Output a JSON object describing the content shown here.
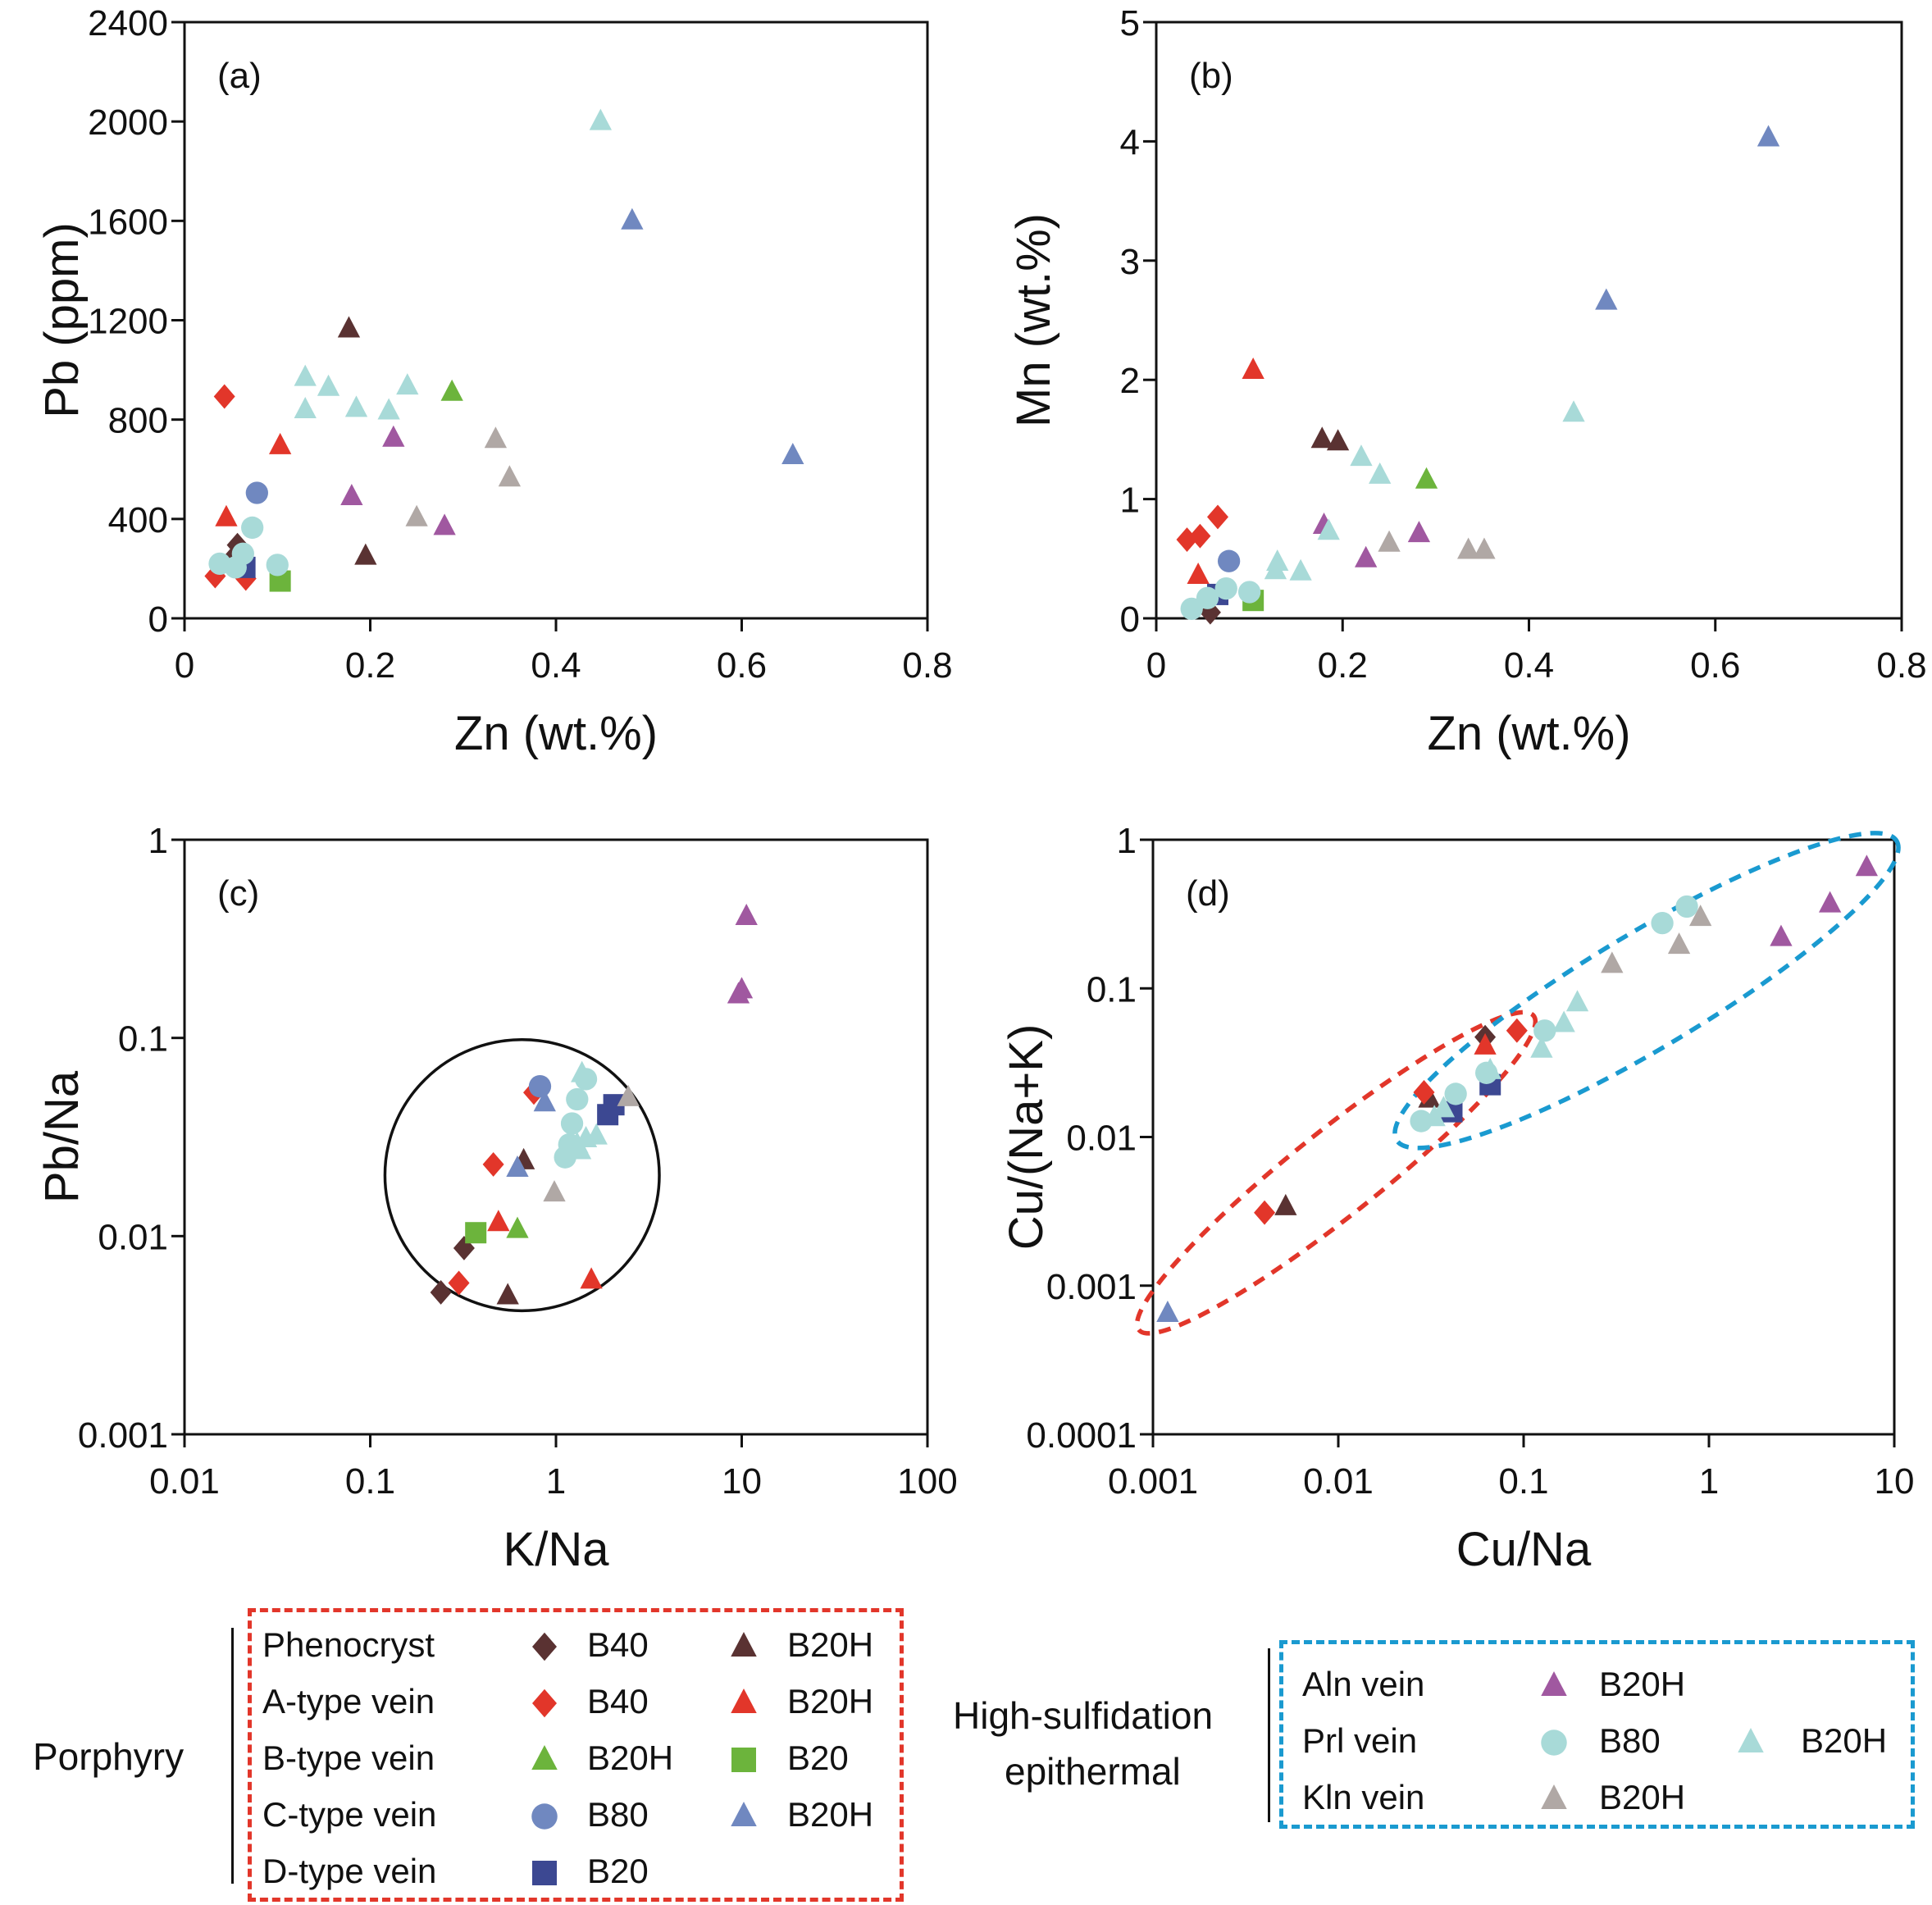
{
  "styles": {
    "ph_d": {
      "shape": "diamond",
      "color": "#5a3232"
    },
    "ph_t": {
      "shape": "triangle",
      "color": "#5a3232"
    },
    "a_d": {
      "shape": "diamond",
      "color": "#e2362a"
    },
    "a_t": {
      "shape": "triangle",
      "color": "#e2362a"
    },
    "b_t": {
      "shape": "triangle",
      "color": "#6cb43c"
    },
    "b_s": {
      "shape": "square",
      "color": "#6cb43c"
    },
    "c_c": {
      "shape": "circle",
      "color": "#7088c0"
    },
    "c_t": {
      "shape": "triangle",
      "color": "#7088c0"
    },
    "d_s": {
      "shape": "square",
      "color": "#3c4892"
    },
    "aln_t": {
      "shape": "triangle",
      "color": "#a058a0"
    },
    "prl_c": {
      "shape": "circle",
      "color": "#a8dad8"
    },
    "prl_t": {
      "shape": "triangle",
      "color": "#a8dad8"
    },
    "kln_t": {
      "shape": "triangle",
      "color": "#b0a8a5"
    }
  },
  "chart_data": [
    {
      "id": "a",
      "panel_label": "(a)",
      "type": "scatter",
      "xlabel": "Zn (wt.%)",
      "ylabel": "Pb (ppm)",
      "xscale": "linear",
      "yscale": "linear",
      "xlim": [
        0,
        0.8
      ],
      "ylim": [
        0,
        2400
      ],
      "xticks": [
        "0",
        "0.2",
        "0.4",
        "0.6",
        "0.8"
      ],
      "xtick_values": [
        0,
        0.2,
        0.4,
        0.6,
        0.8
      ],
      "yticks": [
        "0",
        "400",
        "800",
        "1200",
        "1600",
        "2000",
        "2400"
      ],
      "ytick_values": [
        0,
        400,
        800,
        1200,
        1600,
        2000,
        2400
      ],
      "series": [
        {
          "key": "ph_d",
          "points": [
            [
              0.057,
              295
            ],
            [
              0.055,
              255
            ]
          ]
        },
        {
          "key": "ph_t",
          "points": [
            [
              0.177,
              1165
            ],
            [
              0.195,
              250
            ]
          ]
        },
        {
          "key": "a_d",
          "points": [
            [
              0.043,
              893
            ],
            [
              0.033,
              170
            ],
            [
              0.066,
              160
            ]
          ]
        },
        {
          "key": "a_t",
          "points": [
            [
              0.103,
              695
            ],
            [
              0.045,
              405
            ]
          ]
        },
        {
          "key": "b_t",
          "points": [
            [
              0.288,
              910
            ]
          ]
        },
        {
          "key": "b_s",
          "points": [
            [
              0.103,
              150
            ]
          ]
        },
        {
          "key": "c_c",
          "points": [
            [
              0.078,
              505
            ]
          ]
        },
        {
          "key": "c_t",
          "points": [
            [
              0.482,
              1600
            ],
            [
              0.655,
              655
            ]
          ]
        },
        {
          "key": "d_s",
          "points": [
            [
              0.065,
              205
            ]
          ]
        },
        {
          "key": "aln_t",
          "points": [
            [
              0.225,
              725
            ],
            [
              0.18,
              490
            ],
            [
              0.28,
              370
            ]
          ]
        },
        {
          "key": "prl_c",
          "points": [
            [
              0.073,
              365
            ],
            [
              0.063,
              260
            ],
            [
              0.038,
              220
            ],
            [
              0.055,
              205
            ],
            [
              0.1,
              215
            ]
          ]
        },
        {
          "key": "prl_t",
          "points": [
            [
              0.448,
              2000
            ],
            [
              0.13,
              970
            ],
            [
              0.155,
              930
            ],
            [
              0.13,
              840
            ],
            [
              0.185,
              845
            ],
            [
              0.22,
              835
            ],
            [
              0.24,
              935
            ]
          ]
        },
        {
          "key": "kln_t",
          "points": [
            [
              0.335,
              720
            ],
            [
              0.35,
              565
            ],
            [
              0.25,
              405
            ]
          ]
        }
      ]
    },
    {
      "id": "b",
      "panel_label": "(b)",
      "type": "scatter",
      "xlabel": "Zn (wt.%)",
      "ylabel": "Mn (wt.%)",
      "xscale": "linear",
      "yscale": "linear",
      "xlim": [
        0,
        0.8
      ],
      "ylim": [
        0,
        5
      ],
      "xticks": [
        "0",
        "0.2",
        "0.4",
        "0.6",
        "0.8"
      ],
      "xtick_values": [
        0,
        0.2,
        0.4,
        0.6,
        0.8
      ],
      "yticks": [
        "0",
        "1",
        "2",
        "3",
        "4",
        "5"
      ],
      "ytick_values": [
        0,
        1,
        2,
        3,
        4,
        5
      ],
      "series": [
        {
          "key": "ph_d",
          "points": [
            [
              0.058,
              0.05
            ]
          ]
        },
        {
          "key": "ph_t",
          "points": [
            [
              0.178,
              1.5
            ],
            [
              0.195,
              1.48
            ]
          ]
        },
        {
          "key": "a_d",
          "points": [
            [
              0.033,
              0.66
            ],
            [
              0.047,
              0.69
            ],
            [
              0.066,
              0.85
            ]
          ]
        },
        {
          "key": "a_t",
          "points": [
            [
              0.104,
              2.08
            ],
            [
              0.045,
              0.36
            ]
          ]
        },
        {
          "key": "b_t",
          "points": [
            [
              0.29,
              1.16
            ]
          ]
        },
        {
          "key": "b_s",
          "points": [
            [
              0.104,
              0.15
            ]
          ]
        },
        {
          "key": "c_c",
          "points": [
            [
              0.078,
              0.48
            ]
          ]
        },
        {
          "key": "c_t",
          "points": [
            [
              0.657,
              4.03
            ],
            [
              0.483,
              2.66
            ]
          ]
        },
        {
          "key": "d_s",
          "points": [
            [
              0.066,
              0.2
            ]
          ]
        },
        {
          "key": "aln_t",
          "points": [
            [
              0.18,
              0.78
            ],
            [
              0.282,
              0.71
            ],
            [
              0.225,
              0.5
            ]
          ]
        },
        {
          "key": "prl_c",
          "points": [
            [
              0.038,
              0.08
            ],
            [
              0.055,
              0.17
            ],
            [
              0.075,
              0.25
            ],
            [
              0.1,
              0.22
            ]
          ]
        },
        {
          "key": "prl_t",
          "points": [
            [
              0.448,
              1.72
            ],
            [
              0.22,
              1.35
            ],
            [
              0.24,
              1.2
            ],
            [
              0.185,
              0.73
            ],
            [
              0.13,
              0.47
            ],
            [
              0.128,
              0.4
            ],
            [
              0.155,
              0.39
            ]
          ]
        },
        {
          "key": "kln_t",
          "points": [
            [
              0.25,
              0.63
            ],
            [
              0.335,
              0.57
            ],
            [
              0.352,
              0.57
            ]
          ]
        }
      ]
    },
    {
      "id": "c",
      "panel_label": "(c)",
      "type": "scatter",
      "xlabel": "K/Na",
      "ylabel": "Pb/Na",
      "xscale": "log",
      "yscale": "log",
      "xlim": [
        0.01,
        100
      ],
      "ylim": [
        0.001,
        1
      ],
      "xticks": [
        "0.01",
        "0.1",
        "1",
        "10",
        "100"
      ],
      "xtick_values": [
        0.01,
        0.1,
        1,
        10,
        100
      ],
      "yticks": [
        "0.001",
        "0.01",
        "0.1",
        "1"
      ],
      "ytick_values": [
        0.001,
        0.01,
        0.1,
        1
      ],
      "annotations": [
        {
          "type": "ellipse",
          "stroke": "#111111",
          "center": [
            0.72,
            0.019
          ],
          "x_range": [
            0.12,
            3.6
          ],
          "y_range": [
            0.0042,
            0.098
          ]
        }
      ],
      "series": [
        {
          "key": "ph_d",
          "points": [
            [
              0.24,
              0.0052
            ],
            [
              0.32,
              0.0087
            ]
          ]
        },
        {
          "key": "ph_t",
          "points": [
            [
              0.67,
              0.024
            ],
            [
              0.55,
              0.005
            ]
          ]
        },
        {
          "key": "a_d",
          "points": [
            [
              0.76,
              0.053
            ],
            [
              0.46,
              0.023
            ],
            [
              0.3,
              0.0058
            ]
          ]
        },
        {
          "key": "a_t",
          "points": [
            [
              0.49,
              0.0117
            ],
            [
              1.55,
              0.006
            ]
          ]
        },
        {
          "key": "b_t",
          "points": [
            [
              0.62,
              0.0108
            ]
          ]
        },
        {
          "key": "b_s",
          "points": [
            [
              0.37,
              0.0104
            ]
          ]
        },
        {
          "key": "c_c",
          "points": [
            [
              0.82,
              0.057
            ]
          ]
        },
        {
          "key": "c_t",
          "points": [
            [
              0.87,
              0.047
            ],
            [
              0.62,
              0.022
            ]
          ]
        },
        {
          "key": "d_s",
          "points": [
            [
              1.9,
              0.041
            ],
            [
              2.05,
              0.046
            ]
          ]
        },
        {
          "key": "aln_t",
          "points": [
            [
              10.6,
              0.41
            ],
            [
              10.0,
              0.175
            ],
            [
              9.6,
              0.165
            ]
          ]
        },
        {
          "key": "prl_c",
          "points": [
            [
              1.45,
              0.062
            ],
            [
              1.3,
              0.049
            ],
            [
              1.22,
              0.037
            ],
            [
              1.18,
              0.029
            ],
            [
              1.12,
              0.025
            ]
          ]
        },
        {
          "key": "prl_t",
          "points": [
            [
              1.38,
              0.066
            ],
            [
              1.3,
              0.029
            ],
            [
              1.45,
              0.031
            ],
            [
              1.65,
              0.032
            ],
            [
              1.35,
              0.027
            ]
          ]
        },
        {
          "key": "kln_t",
          "points": [
            [
              2.45,
              0.05
            ],
            [
              0.98,
              0.0165
            ]
          ]
        }
      ]
    },
    {
      "id": "d",
      "panel_label": "(d)",
      "type": "scatter",
      "xlabel": "Cu/Na",
      "ylabel": "Cu/(Na+K)",
      "xscale": "log",
      "yscale": "log",
      "xlim": [
        0.001,
        10
      ],
      "ylim": [
        0.0001,
        1
      ],
      "xticks": [
        "0.001",
        "0.01",
        "0.1",
        "1",
        "10"
      ],
      "xtick_values": [
        0.001,
        0.01,
        0.1,
        1,
        10
      ],
      "yticks": [
        "0.0001",
        "0.001",
        "0.01",
        "0.1",
        "1"
      ],
      "ytick_values": [
        0.0001,
        0.001,
        0.01,
        0.1,
        1
      ],
      "annotations": [
        {
          "type": "dashed-ellipse",
          "stroke": "#e2362a",
          "label": "Porphyry field",
          "from": [
            0.001,
            0.0006
          ],
          "to": [
            0.095,
            0.055
          ]
        },
        {
          "type": "dashed-ellipse",
          "stroke": "#1a9ad0",
          "label": "High-sulfidation epithermal field",
          "from": [
            0.025,
            0.011
          ],
          "to": [
            8.5,
            0.85
          ]
        }
      ],
      "series": [
        {
          "key": "ph_d",
          "points": [
            [
              0.062,
              0.047
            ]
          ]
        },
        {
          "key": "ph_t",
          "points": [
            [
              0.031,
              0.018
            ],
            [
              0.0052,
              0.0034
            ]
          ]
        },
        {
          "key": "a_d",
          "points": [
            [
              0.029,
              0.02
            ],
            [
              0.092,
              0.052
            ],
            [
              0.004,
              0.0031
            ]
          ]
        },
        {
          "key": "a_t",
          "points": [
            [
              0.062,
              0.041
            ]
          ]
        },
        {
          "key": "c_t",
          "points": [
            [
              0.0012,
              0.00065
            ]
          ]
        },
        {
          "key": "d_s",
          "points": [
            [
              0.041,
              0.0148
            ],
            [
              0.066,
              0.0225
            ]
          ]
        },
        {
          "key": "aln_t",
          "points": [
            [
              7.1,
              0.65
            ],
            [
              4.5,
              0.37
            ],
            [
              2.45,
              0.22
            ]
          ]
        },
        {
          "key": "prl_c",
          "points": [
            [
              0.028,
              0.0128
            ],
            [
              0.043,
              0.0195
            ],
            [
              0.063,
              0.027
            ],
            [
              0.13,
              0.052
            ],
            [
              0.56,
              0.275
            ],
            [
              0.76,
              0.355
            ]
          ]
        },
        {
          "key": "prl_t",
          "points": [
            [
              0.033,
              0.0135
            ],
            [
              0.037,
              0.0155
            ],
            [
              0.066,
              0.028
            ],
            [
              0.125,
              0.039
            ],
            [
              0.165,
              0.058
            ],
            [
              0.195,
              0.08
            ]
          ]
        },
        {
          "key": "kln_t",
          "points": [
            [
              0.3,
              0.145
            ],
            [
              0.69,
              0.195
            ],
            [
              0.9,
              0.3
            ]
          ]
        }
      ]
    }
  ],
  "legend": {
    "porphyry": {
      "group_label": "Porphyry",
      "border_color": "#e2362a",
      "rows": [
        {
          "label": "Phenocryst",
          "items": [
            {
              "key": "ph_d",
              "text": "B40"
            },
            {
              "key": "ph_t",
              "text": "B20H"
            }
          ]
        },
        {
          "label": "A-type vein",
          "items": [
            {
              "key": "a_d",
              "text": "B40"
            },
            {
              "key": "a_t",
              "text": "B20H"
            }
          ]
        },
        {
          "label": "B-type vein",
          "items": [
            {
              "key": "b_t",
              "text": "B20H"
            },
            {
              "key": "b_s",
              "text": "B20"
            }
          ]
        },
        {
          "label": "C-type vein",
          "items": [
            {
              "key": "c_c",
              "text": "B80"
            },
            {
              "key": "c_t",
              "text": "B20H"
            }
          ]
        },
        {
          "label": "D-type vein",
          "items": [
            {
              "key": "d_s",
              "text": "B20"
            }
          ]
        }
      ]
    },
    "epithermal": {
      "group_label_line1": "High-sulfidation",
      "group_label_line2": "epithermal",
      "border_color": "#1a9ad0",
      "rows": [
        {
          "label": "Aln vein",
          "items": [
            {
              "key": "aln_t",
              "text": "B20H"
            }
          ]
        },
        {
          "label": "Prl vein",
          "items": [
            {
              "key": "prl_c",
              "text": "B80"
            },
            {
              "key": "prl_t",
              "text": "B20H"
            }
          ]
        },
        {
          "label": "Kln vein",
          "items": [
            {
              "key": "kln_t",
              "text": "B20H"
            }
          ]
        }
      ]
    }
  }
}
